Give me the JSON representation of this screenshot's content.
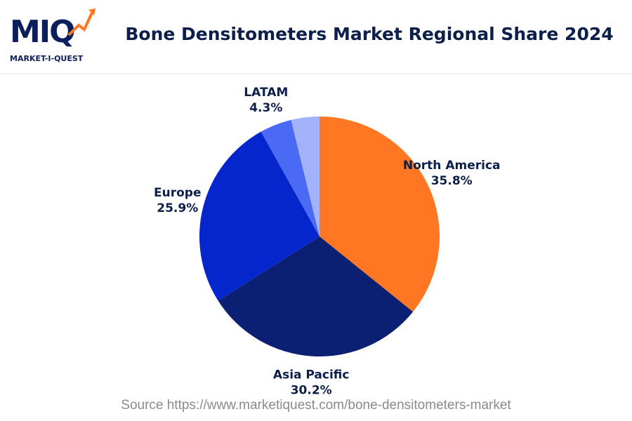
{
  "logo": {
    "text": "MIQ",
    "tagline": "MARKET-I-QUEST"
  },
  "chart_data": {
    "type": "pie",
    "title": "Bone Densitometers Market Regional Share 2024",
    "categories": [
      "North America",
      "Asia Pacific",
      "Europe",
      "LATAM",
      null
    ],
    "values": [
      35.8,
      30.2,
      25.9,
      4.3,
      3.8
    ],
    "value_labels": [
      "35.8%",
      "30.2%",
      "25.9%",
      "4.3%",
      null
    ],
    "colors": [
      "#ff7722",
      "#0b1f73",
      "#0426cc",
      "#4a6af5",
      "#a3b3fb"
    ],
    "source": "Source https://www.marketiquest.com/bone-densitometers-market"
  }
}
